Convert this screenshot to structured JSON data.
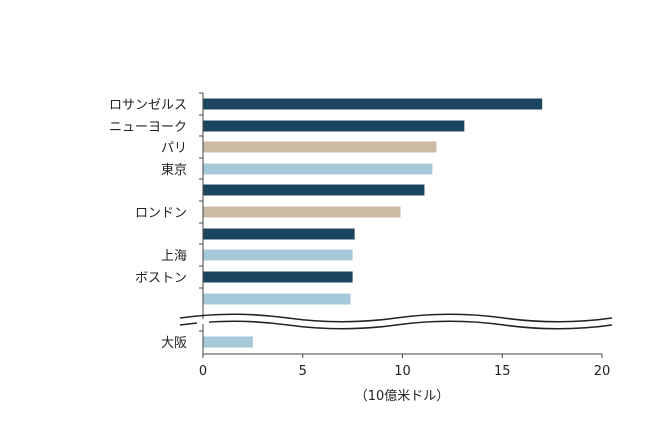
{
  "chart_data": {
    "type": "bar",
    "orientation": "horizontal",
    "categories": [
      "ロサンゼルス",
      "ニューヨーク",
      "パリ",
      "東京",
      "",
      "ロンドン",
      "",
      "上海",
      "ボストン",
      "",
      "大阪"
    ],
    "values": [
      17.0,
      13.1,
      11.7,
      11.5,
      11.1,
      9.9,
      7.6,
      7.5,
      7.5,
      7.4,
      2.5
    ],
    "bar_colors": [
      "#1c4560",
      "#1c4560",
      "#cdbba6",
      "#a6c9d9",
      "#1c4560",
      "#cdbba6",
      "#1c4560",
      "#a6c9d9",
      "#1c4560",
      "#a6c9d9",
      "#a6c9d9"
    ],
    "xlabel": "（10億米ドル）",
    "xlim": [
      0,
      20
    ],
    "xticks": [
      "0",
      "5",
      "10",
      "15",
      "20"
    ],
    "axis_break_before_last": true,
    "grid": false,
    "legend": "none"
  }
}
